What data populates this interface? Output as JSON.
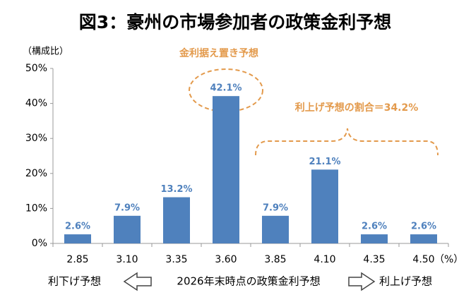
{
  "chart_data": {
    "type": "bar",
    "title": "図3：豪州の市場参加者の政策金利予想",
    "y_unit_label": "（構成比）",
    "x_unit_label": "（%）",
    "x_axis_label": "2026年末時点の政策金利予想",
    "left_label": "利下げ予想",
    "right_label": "利上げ予想",
    "annotations": [
      "金利据え置き予想",
      "利上げ予想の割合＝34.2%"
    ],
    "categories": [
      "2.85",
      "3.10",
      "3.35",
      "3.60",
      "3.85",
      "4.10",
      "4.35",
      "4.50"
    ],
    "values": [
      2.6,
      7.9,
      13.2,
      42.1,
      7.9,
      21.1,
      2.6,
      2.6
    ],
    "value_labels": [
      "2.6%",
      "7.9%",
      "13.2%",
      "42.1%",
      "7.9%",
      "21.1%",
      "2.6%",
      "2.6%"
    ],
    "color": "#4f81bd",
    "annotation_color": "#e39a4c",
    "ylim": [
      0,
      50
    ],
    "yticks": [
      {
        "value": 0,
        "label": "0%"
      },
      {
        "value": 10,
        "label": "10%"
      },
      {
        "value": 20,
        "label": "20%"
      },
      {
        "value": 30,
        "label": "30%"
      },
      {
        "value": 40,
        "label": "40%"
      },
      {
        "value": 50,
        "label": "50%"
      }
    ],
    "grid": false
  }
}
